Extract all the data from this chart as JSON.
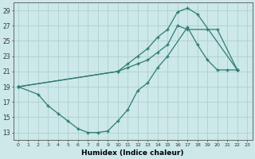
{
  "xlabel": "Humidex (Indice chaleur)",
  "bg_color": "#cce8e8",
  "line_color": "#2e7d6e",
  "grid_color": "#b0d0d0",
  "xlim": [
    -0.5,
    23.5
  ],
  "ylim": [
    12,
    30
  ],
  "yticks": [
    13,
    15,
    17,
    19,
    21,
    23,
    25,
    27,
    29
  ],
  "xticks": [
    0,
    1,
    2,
    3,
    4,
    5,
    6,
    7,
    8,
    9,
    10,
    11,
    12,
    13,
    14,
    15,
    16,
    17,
    18,
    19,
    20,
    21,
    22,
    23
  ],
  "line1_x": [
    0,
    10,
    11,
    12,
    13,
    14,
    15,
    16,
    17,
    18,
    22
  ],
  "line1_y": [
    19,
    21,
    22,
    23,
    24,
    25.5,
    26.5,
    28.8,
    29.3,
    28.5,
    21.2
  ],
  "line2_x": [
    0,
    2,
    3,
    4,
    5,
    6,
    7,
    8,
    9,
    10,
    11,
    12,
    13,
    14,
    15,
    17,
    18,
    19,
    20,
    21,
    22
  ],
  "line2_y": [
    19,
    18,
    16.5,
    15.5,
    14.5,
    13.5,
    13,
    13,
    13.2,
    14.5,
    16,
    18.5,
    19.5,
    21.5,
    23,
    26.8,
    24.5,
    22.5,
    21.2,
    21.2,
    21.2
  ],
  "line3_x": [
    0,
    10,
    11,
    12,
    13,
    14,
    15,
    16,
    17,
    19,
    20,
    22
  ],
  "line3_y": [
    19,
    21,
    21.5,
    22,
    22.5,
    23.5,
    24.5,
    27,
    26.5,
    26.5,
    26.5,
    21.2
  ]
}
